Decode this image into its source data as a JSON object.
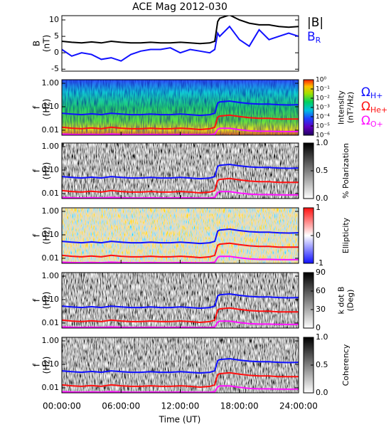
{
  "chart_data": [
    {
      "type": "line",
      "title": "ACE Mag 2012-030",
      "ylabel": [
        "B",
        "(nT)"
      ],
      "x": [
        0,
        1,
        2,
        3,
        4,
        5,
        6,
        7,
        8,
        9,
        10,
        11,
        12,
        13,
        14,
        15,
        15.5,
        15.8,
        16,
        17,
        18,
        19,
        20,
        21,
        22,
        23,
        24
      ],
      "xlim": [
        0,
        24
      ],
      "ylim": [
        -5.6,
        11.3
      ],
      "yticks": [
        -5,
        0,
        5,
        10
      ],
      "series": [
        {
          "name": "|B|",
          "color": "#000000",
          "values": [
            3.5,
            3.2,
            3.0,
            3.3,
            3.0,
            3.5,
            3.2,
            3.0,
            3.0,
            3.2,
            3.0,
            3.0,
            3.2,
            3.0,
            2.8,
            3.0,
            3.5,
            9.5,
            10.5,
            11.5,
            10,
            9,
            8.5,
            8.5,
            8,
            7.8,
            8
          ]
        },
        {
          "name": "B",
          "subscript": "R",
          "color": "#1010ff",
          "values": [
            1,
            -1,
            0,
            -0.5,
            -2,
            -1.5,
            -2.5,
            -0.5,
            0.5,
            1,
            1,
            1.5,
            0,
            1,
            0.5,
            0,
            1,
            6,
            5,
            8,
            4,
            2,
            7,
            4,
            5,
            6,
            5
          ]
        }
      ]
    },
    {
      "type": "spectrogram",
      "ylabel": [
        "f",
        "(Hz)"
      ],
      "xlabel": "Time (UT)",
      "x": [
        0,
        1,
        2,
        3,
        4,
        5,
        6,
        7,
        8,
        9,
        10,
        11,
        12,
        13,
        14,
        15,
        15.5,
        15.8,
        16,
        17,
        18,
        19,
        20,
        21,
        22,
        23,
        24
      ],
      "xlim": [
        0,
        24
      ],
      "xticks": [
        {
          "value": 0,
          "label": "00:00:00"
        },
        {
          "value": 6,
          "label": "06:00:00"
        },
        {
          "value": 12,
          "label": "12:00:00"
        },
        {
          "value": 18,
          "label": "18:00:00"
        },
        {
          "value": 24,
          "label": "24:00:00"
        }
      ],
      "log_y": true,
      "ylim": [
        0.0061,
        1.42
      ],
      "yticks": [
        {
          "value": 1,
          "label": "1.00"
        },
        {
          "value": 0.1,
          "label": "0.10"
        },
        {
          "value": 0.01,
          "label": "0.01"
        }
      ],
      "series": [
        {
          "name": "Ω",
          "subscript": "H+",
          "color": "#1010ff",
          "values": [
            0.053,
            0.049,
            0.046,
            0.05,
            0.046,
            0.053,
            0.049,
            0.046,
            0.046,
            0.049,
            0.046,
            0.046,
            0.049,
            0.046,
            0.043,
            0.046,
            0.053,
            0.144,
            0.16,
            0.175,
            0.152,
            0.137,
            0.129,
            0.129,
            0.122,
            0.119,
            0.122
          ]
        },
        {
          "name": "Ω",
          "subscript": "He+",
          "color": "#ff1010",
          "values": [
            0.0133,
            0.0122,
            0.0115,
            0.0125,
            0.0115,
            0.0133,
            0.0122,
            0.0115,
            0.0115,
            0.0122,
            0.0115,
            0.0115,
            0.0122,
            0.0115,
            0.0107,
            0.0115,
            0.0133,
            0.036,
            0.04,
            0.044,
            0.038,
            0.034,
            0.032,
            0.032,
            0.03,
            0.03,
            0.03
          ]
        },
        {
          "name": "Ω",
          "subscript": "O+",
          "color": "#ff10ff",
          "values": [
            0.0068,
            0.0066,
            0.0065,
            0.0067,
            0.0065,
            0.0068,
            0.0066,
            0.0065,
            0.0065,
            0.0066,
            0.0065,
            0.0065,
            0.0066,
            0.0065,
            0.0064,
            0.0065,
            0.0068,
            0.011,
            0.012,
            0.012,
            0.0105,
            0.0095,
            0.009,
            0.009,
            0.0088,
            0.0087,
            0.0088
          ]
        }
      ],
      "panels": [
        {
          "colorbar_label": [
            "Intensity",
            "(nT²/Hz)"
          ],
          "colorbar_log": true,
          "colorbar_lim": [
            1e-06,
            1
          ],
          "colorbar_ticks": [
            {
              "value": 1,
              "label": "10⁰"
            },
            {
              "value": 0.1,
              "label": "10⁻¹"
            },
            {
              "value": 0.01,
              "label": "10⁻²"
            },
            {
              "value": 0.001,
              "label": "10⁻³"
            },
            {
              "value": 0.0001,
              "label": "10⁻⁴"
            },
            {
              "value": 1e-05,
              "label": "10⁻⁵"
            },
            {
              "value": 1e-06,
              "label": "10⁻⁶"
            }
          ]
        },
        {
          "colorbar_label": [
            "% Polarization"
          ],
          "colorbar_lim": [
            0,
            1
          ],
          "colorbar_ticks": [
            {
              "value": 0,
              "label": "0.0"
            },
            {
              "value": 0.5,
              "label": "0.5"
            },
            {
              "value": 1,
              "label": "1.0"
            }
          ]
        },
        {
          "colorbar_label": [
            "Ellipticity"
          ],
          "colorbar_lim": [
            -1,
            1
          ],
          "colorbar_ticks": [
            -1,
            0,
            1
          ]
        },
        {
          "colorbar_label": [
            "k dot B",
            "(Deg)"
          ],
          "colorbar_lim": [
            0,
            90
          ],
          "colorbar_ticks": [
            0,
            30,
            60,
            90
          ]
        },
        {
          "colorbar_label": [
            "Coherency"
          ],
          "colorbar_lim": [
            0,
            1
          ],
          "colorbar_ticks": [
            {
              "value": 0,
              "label": "0.0"
            },
            {
              "value": 0.5,
              "label": "0.5"
            },
            {
              "value": 1,
              "label": "1.0"
            }
          ]
        }
      ]
    }
  ]
}
